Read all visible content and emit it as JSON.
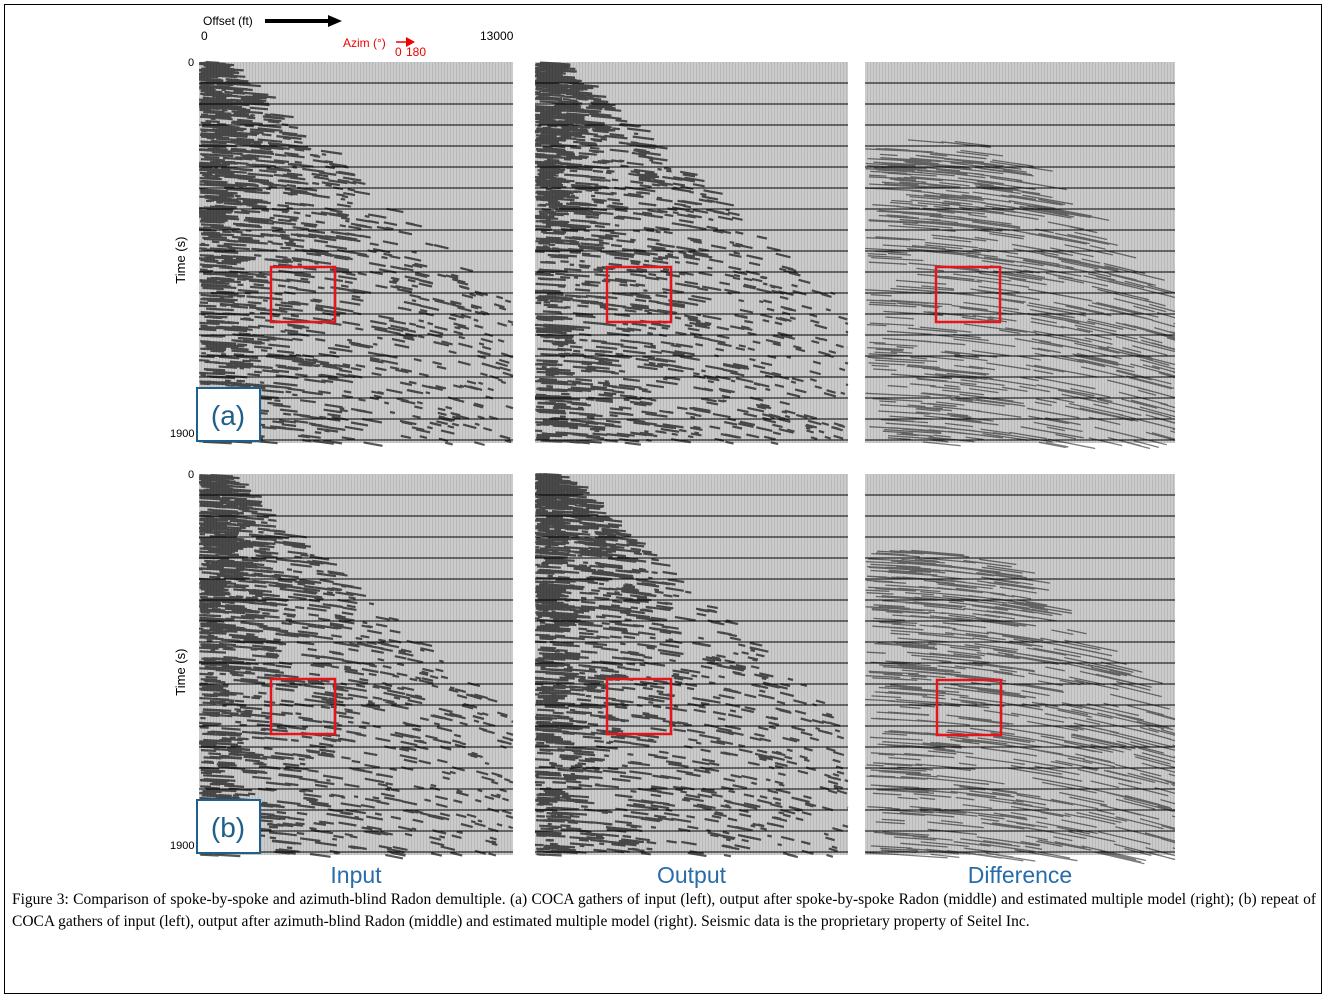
{
  "figure": {
    "offset_label": "Offset (ft)",
    "offset_min": "0",
    "offset_max": "13000",
    "azimuth_label": "Azim (°)",
    "azimuth_min": "0",
    "azimuth_max": "180",
    "rows": [
      {
        "label": "(a)",
        "time_label": "Time (s)",
        "time_min": "0",
        "time_max": "1900"
      },
      {
        "label": "(b)",
        "time_label": "Time (s)",
        "time_min": "0",
        "time_max": "1900"
      }
    ],
    "columns": [
      "Input",
      "Output",
      "Difference"
    ]
  },
  "caption": "Figure 3: Comparison of spoke-by-spoke and azimuth-blind Radon demultiple. (a) COCA gathers of input (left), output after spoke-by-spoke Radon (middle) and estimated multiple model (right); (b) repeat of COCA gathers of input (left), output after azimuth-blind Radon (middle) and estimated multiple model (right). Seismic data is the proprietary property of Seitel Inc."
}
